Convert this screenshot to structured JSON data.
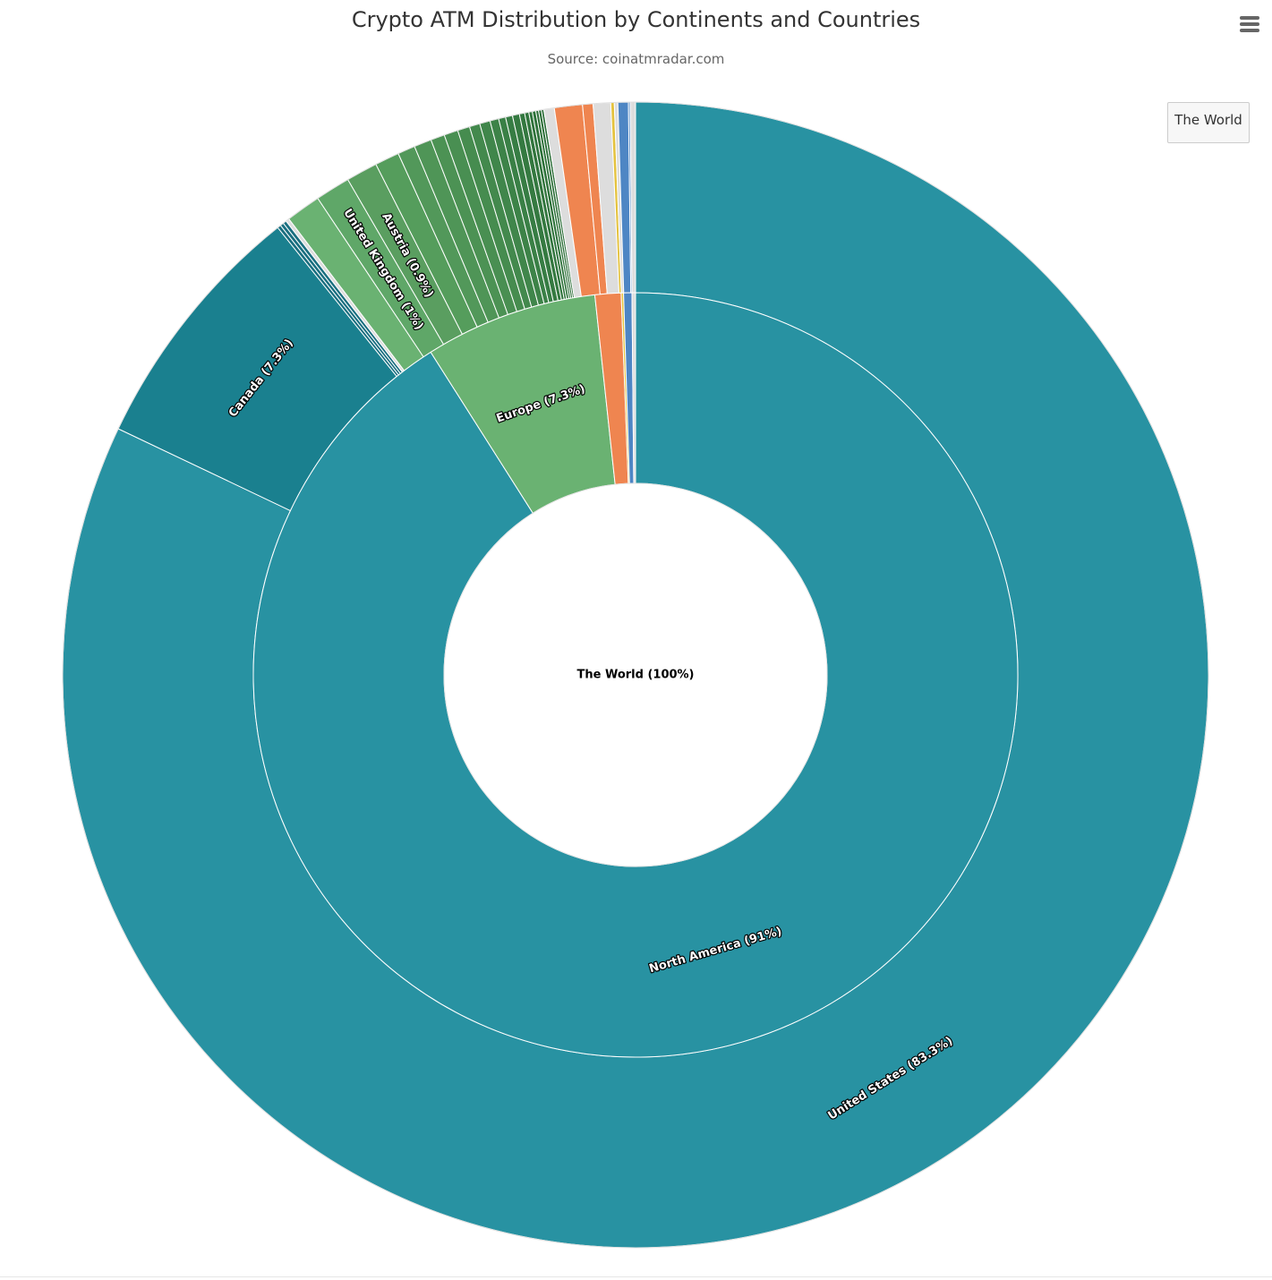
{
  "title": "Crypto ATM Distribution by Continents and Countries",
  "subtitle": "Source: coinatmradar.com",
  "breadcrumb": {
    "label": "The World"
  },
  "menu": {
    "icon": "hamburger-menu-icon"
  },
  "chart_data": {
    "type": "sunburst",
    "title": "Crypto ATM Distribution by Continents and Countries",
    "subtitle": "Source: coinatmradar.com",
    "root": {
      "label": "The World (100%)",
      "value": 100
    },
    "continents": [
      {
        "label": "North America (91%)",
        "value": 91.0,
        "color": "#2892a2"
      },
      {
        "label": "Europe (7.3%)",
        "value": 7.3,
        "color": "#6ab272"
      },
      {
        "label": "",
        "value": 1.1,
        "color": "#ef8550"
      },
      {
        "label": "",
        "value": 0.1,
        "color": "#e4c23e"
      },
      {
        "label": "",
        "value": 0.35,
        "color": "#4e86c4"
      },
      {
        "label": "",
        "value": 0.15,
        "color": "#dddddd"
      }
    ],
    "countries": [
      {
        "label": "United States (83.3%)",
        "value": 83.3,
        "color": "#2892a2"
      },
      {
        "label": "Canada (7.3%)",
        "value": 7.3,
        "color": "#1a808f"
      },
      {
        "label": "",
        "value": 0.1,
        "color": "#1a6f80"
      },
      {
        "label": "",
        "value": 0.1,
        "color": "#1a6f80"
      },
      {
        "label": "",
        "value": 0.1,
        "color": "#1a6f80"
      },
      {
        "label": "",
        "value": 0.1,
        "color": "#dddddd"
      },
      {
        "label": "",
        "value": 1.0,
        "color": "#6ab272"
      },
      {
        "label": "United Kingdom (1%)",
        "value": 1.0,
        "color": "#5fa768"
      },
      {
        "label": "Austria (0.9%)",
        "value": 0.9,
        "color": "#5a9e60"
      },
      {
        "label": "",
        "value": 0.7,
        "color": "#559d5c"
      },
      {
        "label": "",
        "value": 0.5,
        "color": "#52985a"
      },
      {
        "label": "",
        "value": 0.5,
        "color": "#4f9557"
      },
      {
        "label": "",
        "value": 0.4,
        "color": "#4c9254"
      },
      {
        "label": "",
        "value": 0.4,
        "color": "#498f52"
      },
      {
        "label": "",
        "value": 0.35,
        "color": "#468c4f"
      },
      {
        "label": "",
        "value": 0.3,
        "color": "#43894d"
      },
      {
        "label": "",
        "value": 0.3,
        "color": "#40864b"
      },
      {
        "label": "",
        "value": 0.25,
        "color": "#3d8348"
      },
      {
        "label": "",
        "value": 0.2,
        "color": "#3a8046"
      },
      {
        "label": "",
        "value": 0.2,
        "color": "#377d44"
      },
      {
        "label": "",
        "value": 0.2,
        "color": "#357a41"
      },
      {
        "label": "",
        "value": 0.15,
        "color": "#33783f"
      },
      {
        "label": "",
        "value": 0.12,
        "color": "#31753d"
      },
      {
        "label": "",
        "value": 0.1,
        "color": "#2f733b"
      },
      {
        "label": "",
        "value": 0.1,
        "color": "#2d7139"
      },
      {
        "label": "",
        "value": 0.08,
        "color": "#2b6f37"
      },
      {
        "label": "",
        "value": 0.08,
        "color": "#2a6d36"
      },
      {
        "label": "",
        "value": 0.07,
        "color": "#296b35"
      },
      {
        "label": "",
        "value": 0.3,
        "color": "#dddddd"
      },
      {
        "label": "",
        "value": 0.8,
        "color": "#ef8550"
      },
      {
        "label": "",
        "value": 0.3,
        "color": "#ef8550"
      },
      {
        "label": "",
        "value": 0.5,
        "color": "#dddddd"
      },
      {
        "label": "",
        "value": 0.1,
        "color": "#e4c23e"
      },
      {
        "label": "",
        "value": 0.1,
        "color": "#dddddd"
      },
      {
        "label": "",
        "value": 0.3,
        "color": "#4e86c4"
      },
      {
        "label": "",
        "value": 0.05,
        "color": "#4e86c4"
      },
      {
        "label": "",
        "value": 0.15,
        "color": "#dddddd"
      }
    ]
  }
}
